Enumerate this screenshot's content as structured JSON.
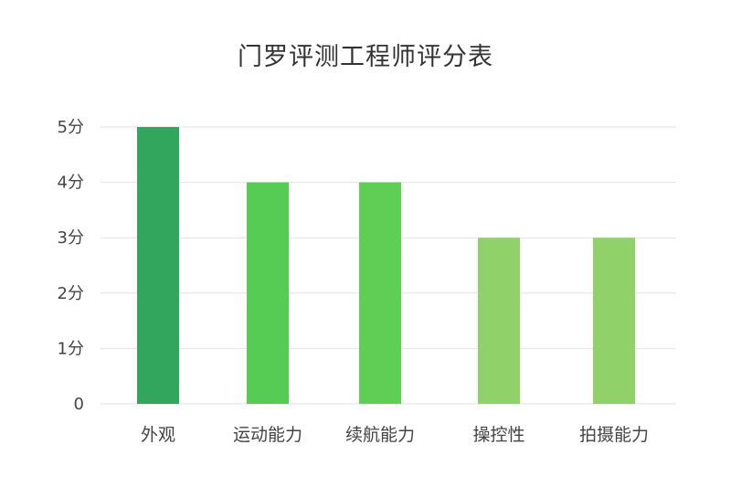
{
  "chart_data": {
    "type": "bar",
    "title": "门罗评测工程师评分表",
    "xlabel": "",
    "ylabel": "",
    "categories": [
      "外观",
      "运动能力",
      "续航能力",
      "操控性",
      "拍摄能力"
    ],
    "values": [
      5,
      4,
      4,
      3,
      3
    ],
    "bar_colors": [
      "#33a65e",
      "#56cc55",
      "#5ece55",
      "#90d16a",
      "#90d16a"
    ],
    "yticks": [
      {
        "value": 0,
        "label": "0"
      },
      {
        "value": 1,
        "label": "1分"
      },
      {
        "value": 2,
        "label": "2分"
      },
      {
        "value": 3,
        "label": "3分"
      },
      {
        "value": 4,
        "label": "4分"
      },
      {
        "value": 5,
        "label": "5分"
      }
    ],
    "ylim": [
      0,
      5
    ],
    "grid": true,
    "gridline_color": "#e2e2e2",
    "legend": "none"
  }
}
